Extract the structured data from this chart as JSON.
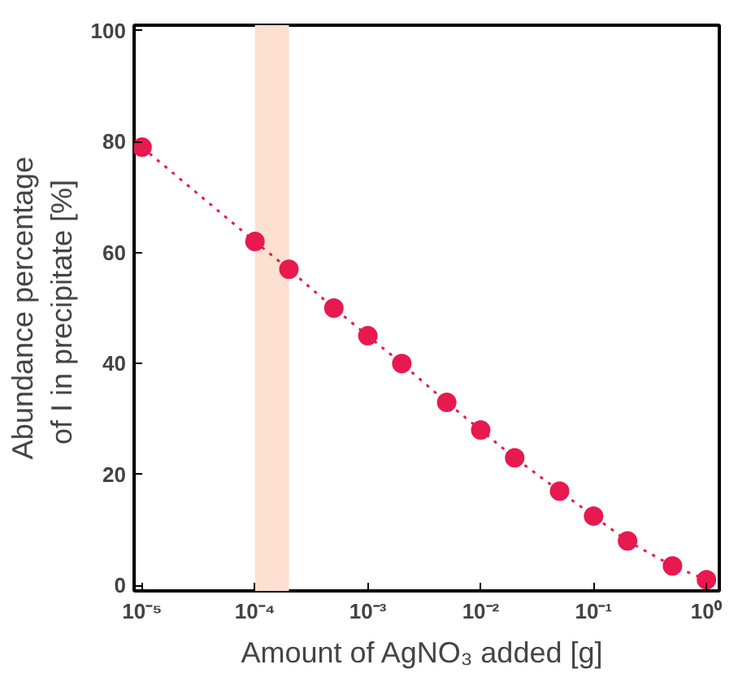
{
  "chart_data": {
    "type": "line",
    "xlabel": "Amount of AgNO₃ added  [g]",
    "ylabel": "Abundance percentage\nof I in precipitate  [%]",
    "x": [
      1e-05,
      0.0001,
      0.0002,
      0.0005,
      0.001,
      0.002,
      0.005,
      0.01,
      0.02,
      0.05,
      0.1,
      0.2,
      0.5,
      1
    ],
    "series": [
      {
        "color": "#e8194f",
        "values": [
          79,
          62,
          57,
          50,
          45,
          40,
          33,
          28,
          23,
          17,
          12.5,
          8,
          3.5,
          1
        ]
      }
    ],
    "log": "x",
    "xlim": [
      8.5e-06,
      1.3
    ],
    "ylim": [
      -1,
      101
    ],
    "xticks": [
      {
        "value": 1e-05,
        "label": "10⁻⁵"
      },
      {
        "value": 0.0001,
        "label": "10⁻⁴"
      },
      {
        "value": 0.001,
        "label": "10⁻³"
      },
      {
        "value": 0.01,
        "label": "10⁻²"
      },
      {
        "value": 0.1,
        "label": "10⁻¹"
      },
      {
        "value": 1,
        "label": "10⁰"
      }
    ],
    "yticks": [
      0,
      20,
      40,
      60,
      80,
      100
    ],
    "bands": [
      {
        "axis": "x",
        "from": 0.0001,
        "to": 0.0002,
        "color": "#fde0d0"
      }
    ],
    "grid": false,
    "marker": "circle",
    "line_style": "dotted"
  }
}
